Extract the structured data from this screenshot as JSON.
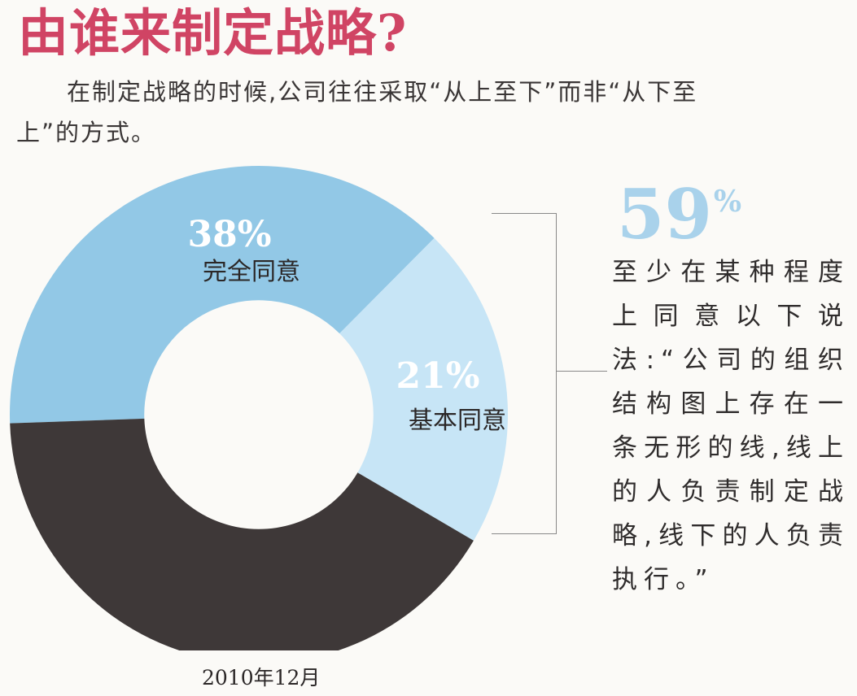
{
  "title": "由谁来制定战略?",
  "intro": {
    "line1": "在制定战略的时候,公司往往采取“从上至下”而",
    "line2": "非“从下至上”的方式。"
  },
  "chart_data": {
    "type": "pie",
    "title": "由谁来制定战略?",
    "slices": [
      {
        "label": "完全同意",
        "value": 38,
        "display": "38%",
        "color": "#92c8e6"
      },
      {
        "label": "基本同意",
        "value": 21,
        "display": "21%",
        "color": "#c7e5f6"
      },
      {
        "label": "",
        "value": 41,
        "display": "",
        "color": "#3e3838"
      }
    ],
    "hole": 0.46,
    "callout": {
      "value": "59",
      "unit": "%",
      "text": "至少在某种程度上同意以下说法:“公司的组织结构图上存在一条无形的线,线上的人负责制定战略,线下的人负责执行。”"
    },
    "date": "2010年12月"
  },
  "colors": {
    "title": "#d04464",
    "callout_number": "#a9d2eb"
  }
}
